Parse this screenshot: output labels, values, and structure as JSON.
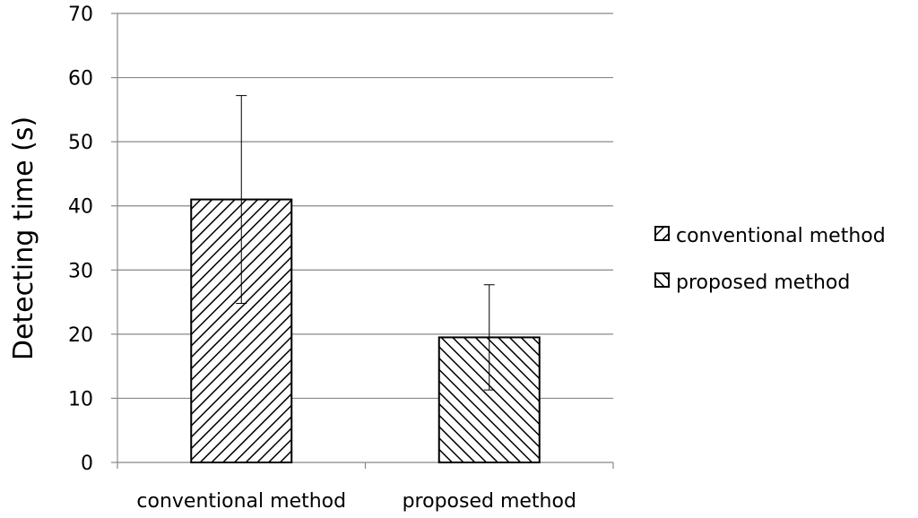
{
  "chart_data": {
    "type": "bar",
    "categories": [
      "conventional method",
      "proposed method"
    ],
    "series": [
      {
        "name": "conventional method",
        "values": [
          41,
          null
        ],
        "error": [
          16.2,
          null
        ],
        "pattern": "hatch-forward"
      },
      {
        "name": "proposed method",
        "values": [
          null,
          19.5
        ],
        "error": [
          null,
          8.2
        ],
        "pattern": "hatch-backward"
      }
    ],
    "ylabel": "Detecting  time (s)",
    "xlabel": "",
    "ylim": [
      0,
      70
    ],
    "yticks": [
      0,
      10,
      20,
      30,
      40,
      50,
      60,
      70
    ],
    "grid": true,
    "legend_position": "right",
    "colors": {
      "bar_stroke": "#000000",
      "hatch": "#000000",
      "grid": "#888888",
      "axis": "#888888",
      "error_bar": "#000000"
    }
  }
}
